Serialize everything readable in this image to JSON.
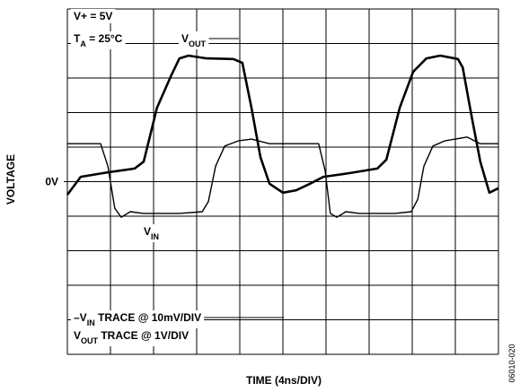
{
  "chart_data": {
    "type": "line",
    "xlabel": "TIME (4ns/DIV)",
    "ylabel": "VOLTAGE",
    "figure_id": "06010-020",
    "xlim": [
      0,
      10
    ],
    "ylim": [
      -5,
      5
    ],
    "xgrid": [
      0,
      1,
      2,
      3,
      4,
      5,
      6,
      7,
      8,
      9,
      10
    ],
    "ygrid": [
      -5,
      -4,
      -3,
      -2,
      -1,
      0,
      1,
      2,
      3,
      4,
      5
    ],
    "yticks": [
      {
        "value": 0,
        "label": "0V"
      }
    ],
    "annotations": [
      [
        {
          "text": "V+ = 5V"
        }
      ],
      [
        {
          "text": "T"
        },
        {
          "text": "A",
          "sub": true
        },
        {
          "text": " = 25°C"
        }
      ],
      [
        {
          "text": "–V"
        },
        {
          "text": "IN",
          "sub": true
        },
        {
          "text": " TRACE @ 10mV/DIV"
        }
      ],
      [
        {
          "text": "V"
        },
        {
          "text": "OUT",
          "sub": true
        },
        {
          "text": " TRACE @ 1V/DIV"
        }
      ]
    ],
    "series": [
      {
        "name_parts": [
          {
            "text": "V"
          },
          {
            "text": "OUT",
            "sub": true
          }
        ],
        "color": "#000000",
        "width": 2.6,
        "x": [
          0,
          0.31,
          0.94,
          1.56,
          1.77,
          2.08,
          2.4,
          2.6,
          2.81,
          3.23,
          3.85,
          4.06,
          4.27,
          4.48,
          4.69,
          5.0,
          5.31,
          5.63,
          5.94,
          6.56,
          7.19,
          7.4,
          7.71,
          8.02,
          8.33,
          8.65,
          9.06,
          9.17,
          9.38,
          9.58,
          9.79,
          10
        ],
        "values": [
          -0.38,
          0.14,
          0.27,
          0.38,
          0.58,
          2.14,
          3.05,
          3.57,
          3.65,
          3.57,
          3.55,
          3.44,
          2.14,
          0.71,
          -0.06,
          -0.32,
          -0.25,
          -0.06,
          0.14,
          0.25,
          0.38,
          0.64,
          2.14,
          3.18,
          3.57,
          3.65,
          3.55,
          3.31,
          1.88,
          0.58,
          -0.32,
          -0.19
        ]
      },
      {
        "name_parts": [
          {
            "text": "V"
          },
          {
            "text": "IN",
            "sub": true
          }
        ],
        "color": "#000000",
        "width": 1.4,
        "x": [
          0,
          0.77,
          0.94,
          1.1,
          1.25,
          1.46,
          1.77,
          2.6,
          3.13,
          3.27,
          3.44,
          3.65,
          3.96,
          4.27,
          4.69,
          5.83,
          5.98,
          6.1,
          6.25,
          6.46,
          6.77,
          7.6,
          7.98,
          8.13,
          8.27,
          8.48,
          8.75,
          9.27,
          9.58,
          10
        ],
        "values": [
          1.1,
          1.1,
          0.45,
          -0.77,
          -1.03,
          -0.87,
          -0.92,
          -0.92,
          -0.87,
          -0.58,
          0.45,
          1.03,
          1.18,
          1.23,
          1.1,
          1.1,
          0.32,
          -0.92,
          -1.03,
          -0.87,
          -0.92,
          -0.92,
          -0.87,
          -0.51,
          0.45,
          1.03,
          1.18,
          1.29,
          1.1,
          1.1
        ]
      }
    ]
  }
}
